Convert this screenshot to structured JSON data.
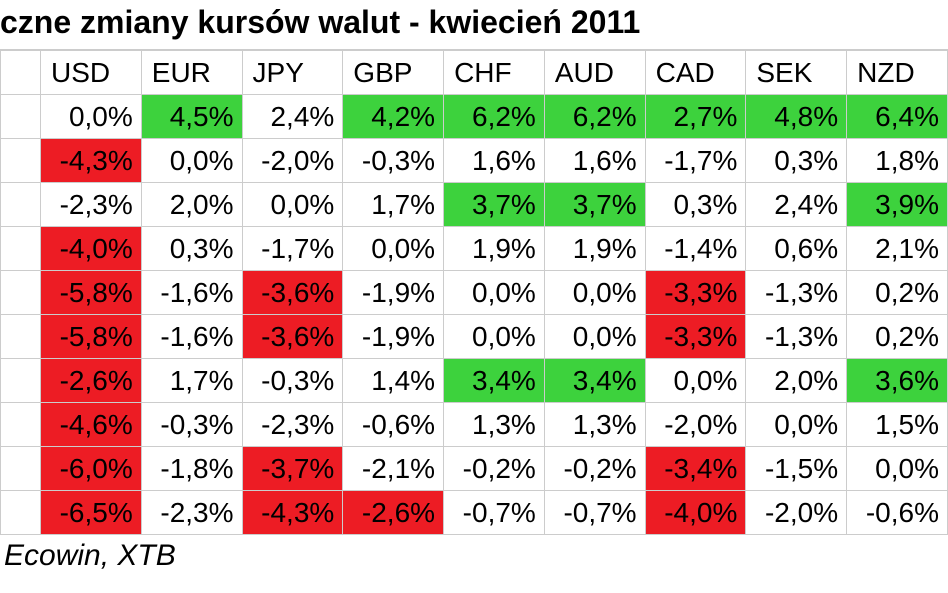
{
  "title": "czne zmiany kursów walut - kwiecień 2011",
  "footer": "Ecowin, XTB",
  "table": {
    "columns": [
      "USD",
      "EUR",
      "JPY",
      "GBP",
      "CHF",
      "AUD",
      "CAD",
      "SEK",
      "NZD"
    ],
    "colors": {
      "neg_strong": "#ed1c24",
      "pos_strong": "#3dd23d",
      "grid": "#cccccc",
      "text": "#000000",
      "bg": "#ffffff"
    },
    "neg_threshold": -2.5,
    "pos_threshold": 2.5,
    "header_fontsize": 28,
    "cell_fontsize": 28,
    "title_fontsize": 32,
    "footer_fontsize": 30,
    "rows": [
      {
        "v": [
          "0,0%",
          "4,5%",
          "2,4%",
          "4,2%",
          "6,2%",
          "6,2%",
          "2,7%",
          "4,8%",
          "6,4%"
        ],
        "c": [
          "",
          "pos-strong",
          "",
          "pos-strong",
          "pos-strong",
          "pos-strong",
          "pos-strong",
          "pos-strong",
          "pos-strong"
        ]
      },
      {
        "v": [
          "-4,3%",
          "0,0%",
          "-2,0%",
          "-0,3%",
          "1,6%",
          "1,6%",
          "-1,7%",
          "0,3%",
          "1,8%"
        ],
        "c": [
          "neg-strong",
          "",
          "",
          "",
          "",
          "",
          "",
          "",
          ""
        ]
      },
      {
        "v": [
          "-2,3%",
          "2,0%",
          "0,0%",
          "1,7%",
          "3,7%",
          "3,7%",
          "0,3%",
          "2,4%",
          "3,9%"
        ],
        "c": [
          "",
          "",
          "",
          "",
          "pos-strong",
          "pos-strong",
          "",
          "",
          "pos-strong"
        ]
      },
      {
        "v": [
          "-4,0%",
          "0,3%",
          "-1,7%",
          "0,0%",
          "1,9%",
          "1,9%",
          "-1,4%",
          "0,6%",
          "2,1%"
        ],
        "c": [
          "neg-strong",
          "",
          "",
          "",
          "",
          "",
          "",
          "",
          ""
        ]
      },
      {
        "v": [
          "-5,8%",
          "-1,6%",
          "-3,6%",
          "-1,9%",
          "0,0%",
          "0,0%",
          "-3,3%",
          "-1,3%",
          "0,2%"
        ],
        "c": [
          "neg-strong",
          "",
          "neg-strong",
          "",
          "",
          "",
          "neg-strong",
          "",
          ""
        ]
      },
      {
        "v": [
          "-5,8%",
          "-1,6%",
          "-3,6%",
          "-1,9%",
          "0,0%",
          "0,0%",
          "-3,3%",
          "-1,3%",
          "0,2%"
        ],
        "c": [
          "neg-strong",
          "",
          "neg-strong",
          "",
          "",
          "",
          "neg-strong",
          "",
          ""
        ]
      },
      {
        "v": [
          "-2,6%",
          "1,7%",
          "-0,3%",
          "1,4%",
          "3,4%",
          "3,4%",
          "0,0%",
          "2,0%",
          "3,6%"
        ],
        "c": [
          "neg-strong",
          "",
          "",
          "",
          "pos-strong",
          "pos-strong",
          "",
          "",
          "pos-strong"
        ]
      },
      {
        "v": [
          "-4,6%",
          "-0,3%",
          "-2,3%",
          "-0,6%",
          "1,3%",
          "1,3%",
          "-2,0%",
          "0,0%",
          "1,5%"
        ],
        "c": [
          "neg-strong",
          "",
          "",
          "",
          "",
          "",
          "",
          "",
          ""
        ]
      },
      {
        "v": [
          "-6,0%",
          "-1,8%",
          "-3,7%",
          "-2,1%",
          "-0,2%",
          "-0,2%",
          "-3,4%",
          "-1,5%",
          "0,0%"
        ],
        "c": [
          "neg-strong",
          "",
          "neg-strong",
          "",
          "",
          "",
          "neg-strong",
          "",
          ""
        ]
      },
      {
        "v": [
          "-6,5%",
          "-2,3%",
          "-4,3%",
          "-2,6%",
          "-0,7%",
          "-0,7%",
          "-4,0%",
          "-2,0%",
          "-0,6%"
        ],
        "c": [
          "neg-strong",
          "",
          "neg-strong",
          "neg-strong",
          "",
          "",
          "neg-strong",
          "",
          ""
        ]
      }
    ]
  }
}
